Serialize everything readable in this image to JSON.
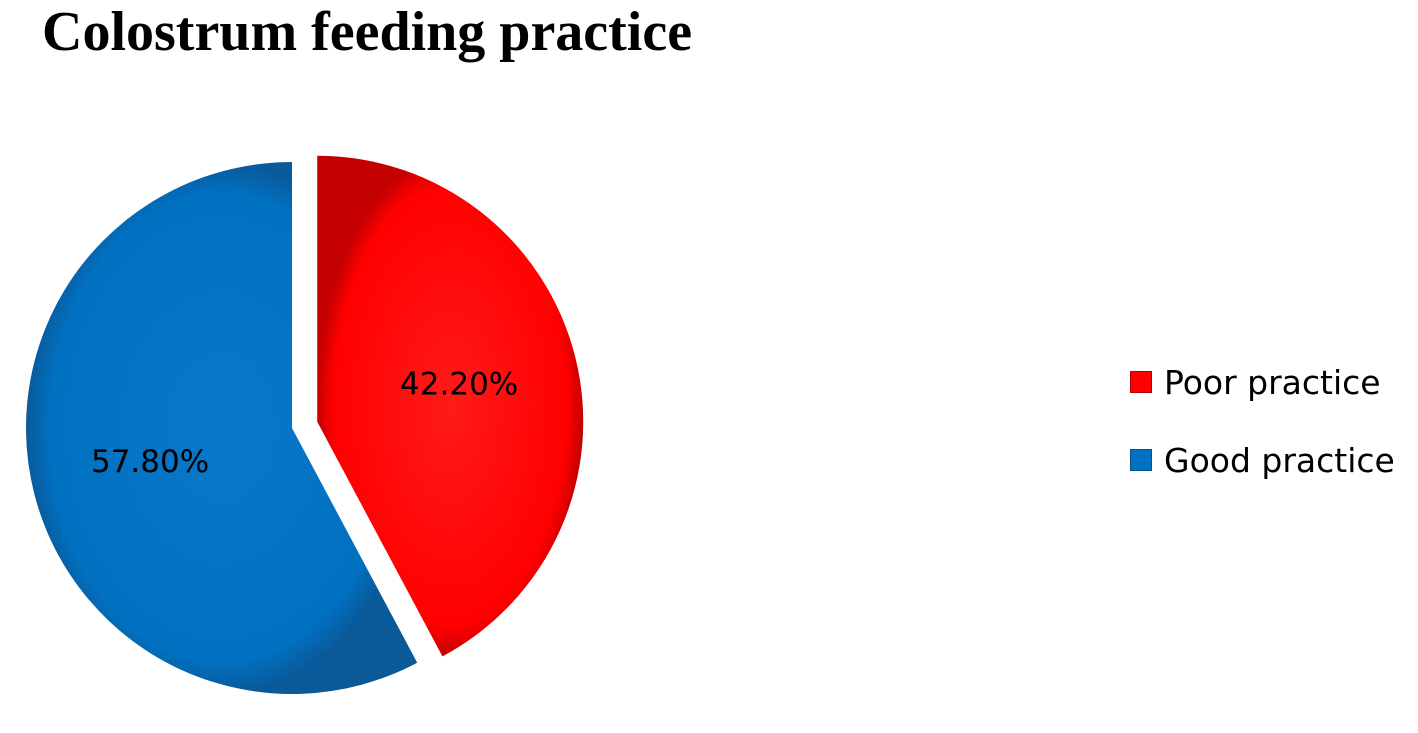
{
  "chart_data": {
    "type": "pie",
    "title": "Colostrum feeding practice",
    "slices": [
      {
        "name": "Poor practice",
        "value": 42.2,
        "label": "42.20%",
        "color": "#ff0000",
        "exploded": true
      },
      {
        "name": "Good practice",
        "value": 57.8,
        "label": "57.80%",
        "color": "#0070c0",
        "exploded": false
      }
    ],
    "legend": {
      "position": "right",
      "items": [
        "Poor practice",
        "Good practice"
      ]
    }
  }
}
